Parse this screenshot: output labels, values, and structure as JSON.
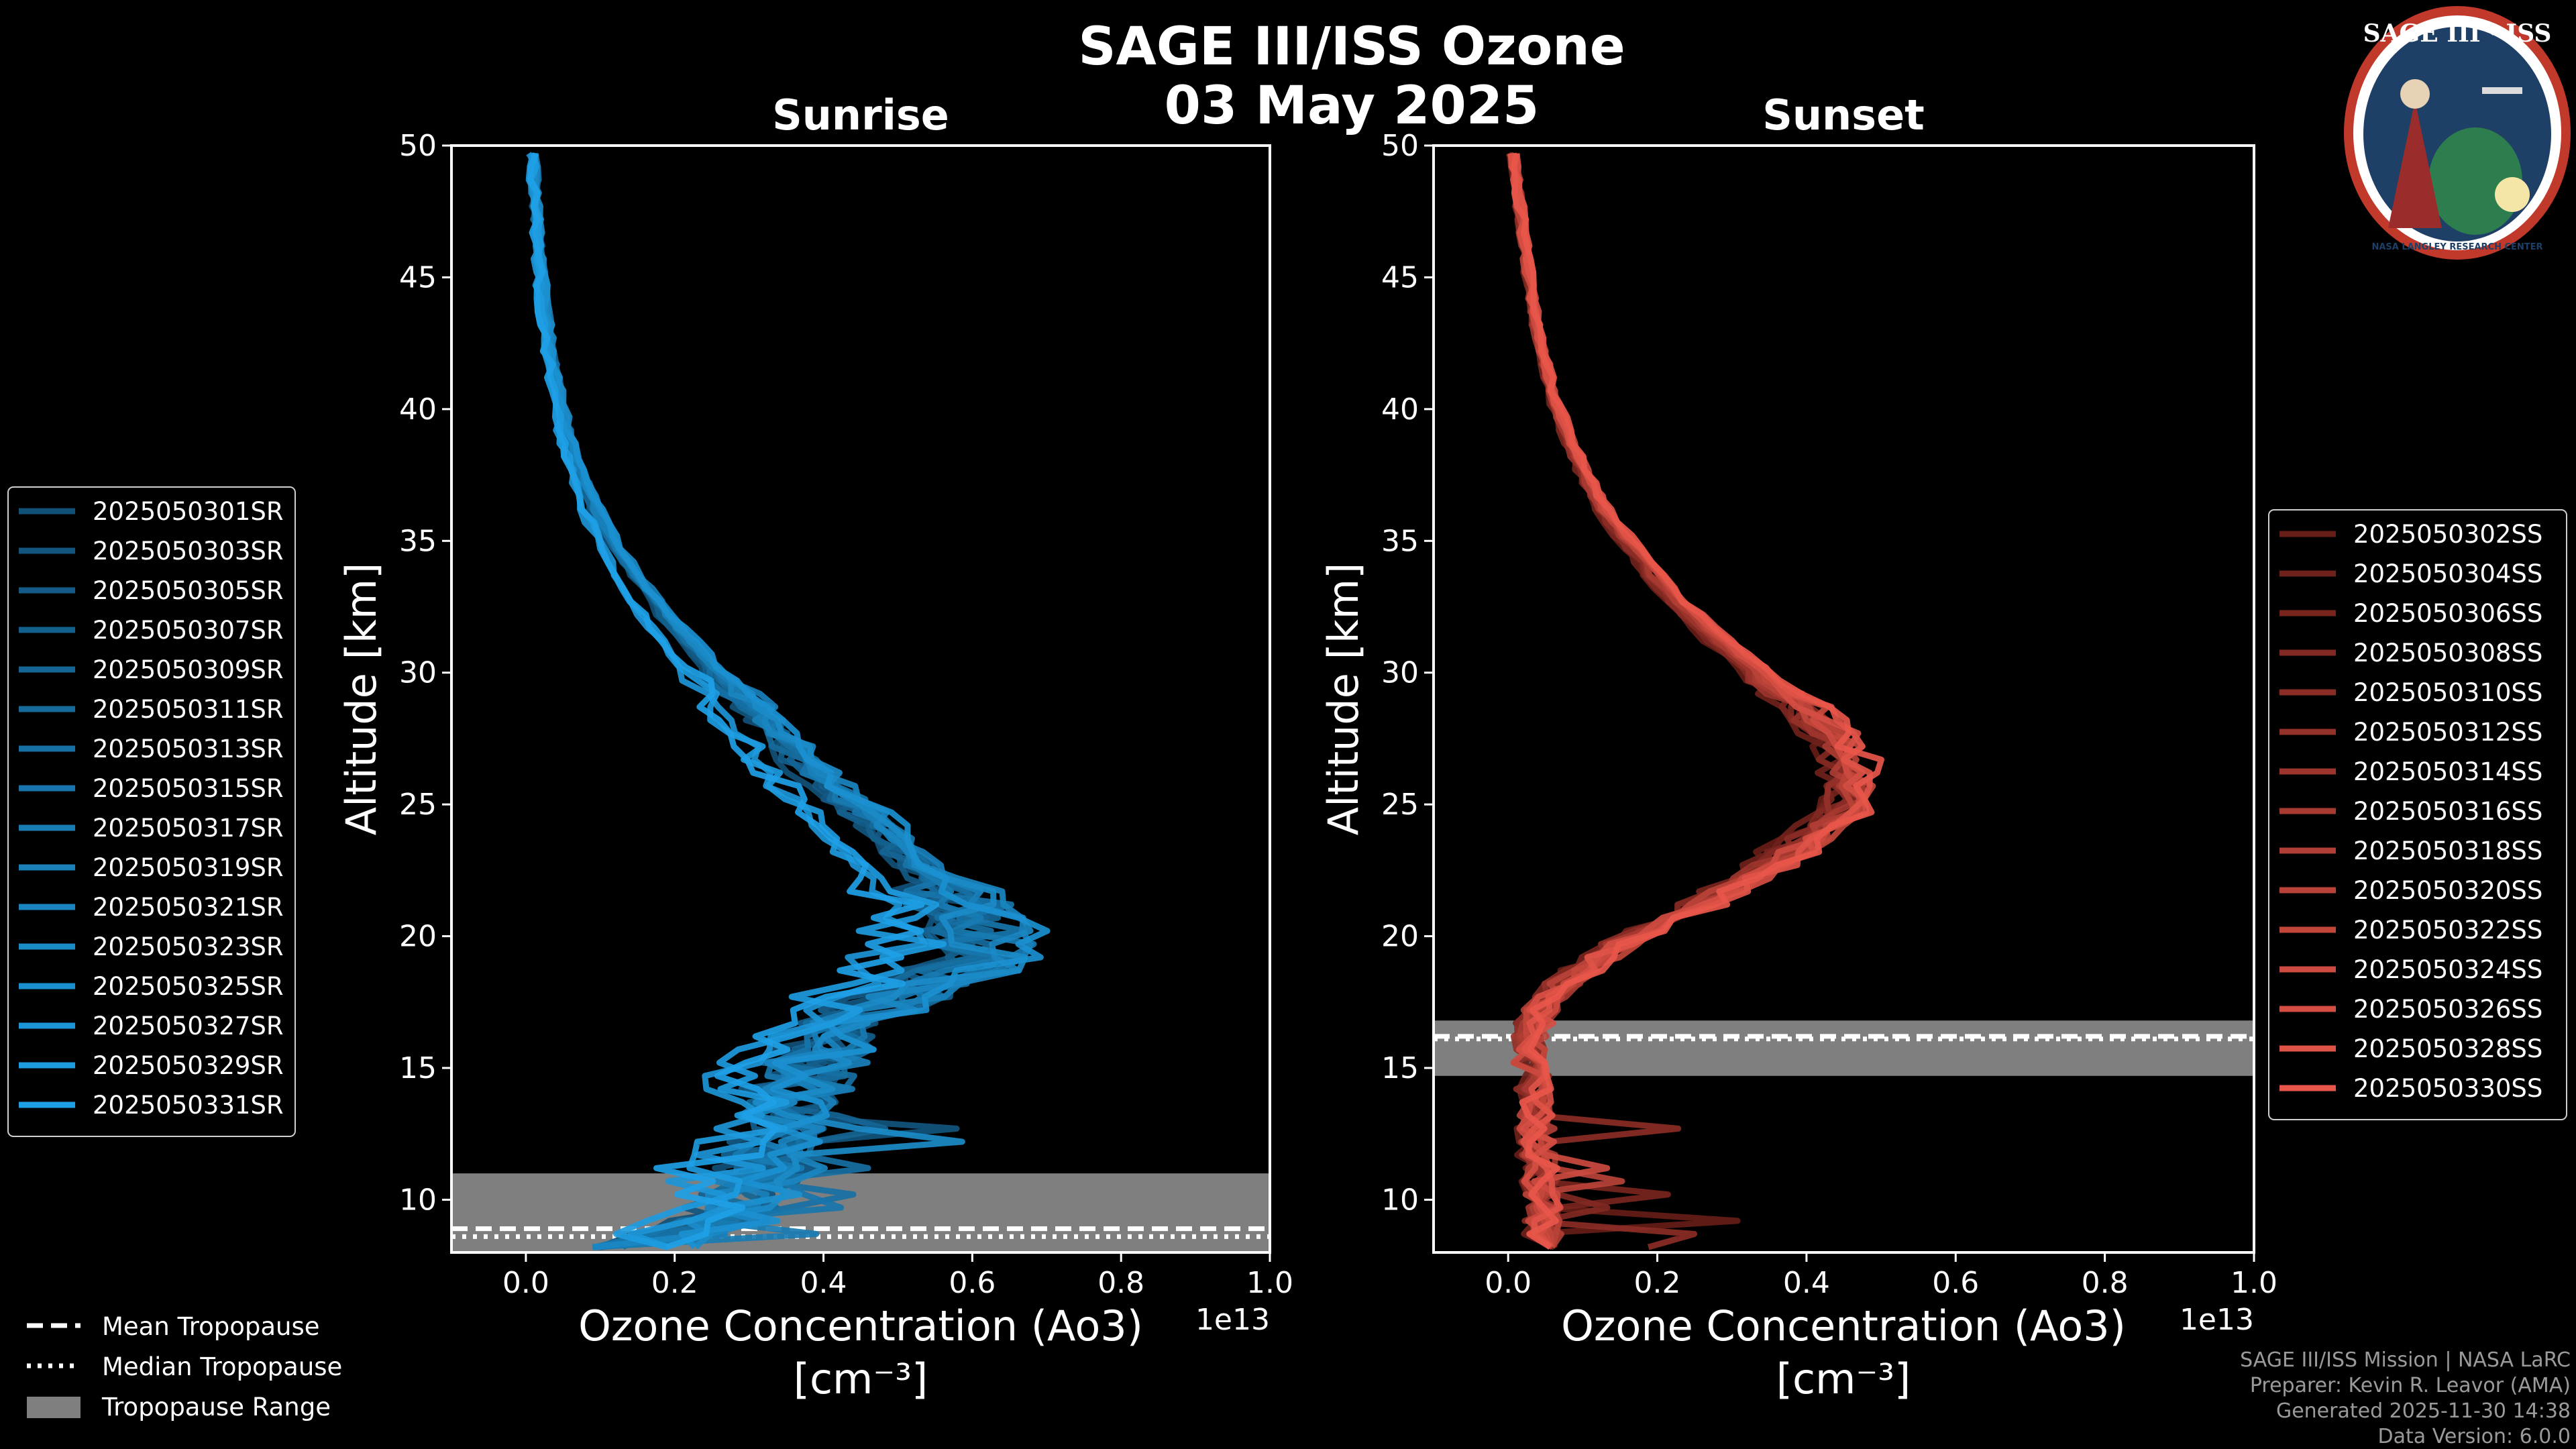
{
  "title": {
    "line1": "SAGE III/ISS Ozone",
    "line2": "03 May 2025"
  },
  "credits": [
    "SAGE III/ISS Mission | NASA LaRC",
    "Preparer: Kevin R. Leavor (AMA)",
    "Generated 2025-11-30 14:38",
    "Data Version: 6.0.0"
  ],
  "logo": {
    "text": "SAGE III · ISS",
    "ring_text": "NASA LANGLEY RESEARCH CENTER",
    "border_color": "#c0392b",
    "bg_color": "#1e3f66"
  },
  "tropo_legend": [
    {
      "label": "Mean Tropopause",
      "style": "dashed"
    },
    {
      "label": "Median Tropopause",
      "style": "dotted"
    },
    {
      "label": "Tropopause Range",
      "style": "band"
    }
  ],
  "chart_data": [
    {
      "type": "line",
      "title": "Sunrise",
      "xlabel": "Ozone Concentration (Ao3)",
      "xunits": "[cm⁻³]",
      "ylabel": "Altitude [km]",
      "xlim": [
        -0.1,
        1.0
      ],
      "ylim": [
        8,
        50
      ],
      "x_scale": "1e13",
      "xticks": [
        "0.0",
        "0.2",
        "0.4",
        "0.6",
        "0.8",
        "1.0"
      ],
      "yticks": [
        "10",
        "15",
        "20",
        "25",
        "30",
        "35",
        "40",
        "45",
        "50"
      ],
      "color_dark": "#0d3552",
      "color_light": "#1ea0e6",
      "tropopause": {
        "mean": 8.9,
        "median": 8.6,
        "range": [
          8.0,
          11.0
        ]
      },
      "profile": {
        "alt": [
          8,
          9,
          10,
          11,
          12,
          13,
          14,
          15,
          16,
          17,
          18,
          19,
          20,
          21,
          22,
          23,
          24,
          25,
          26,
          27,
          28,
          30,
          32,
          34,
          36,
          38,
          40,
          42,
          44,
          46,
          48,
          50
        ],
        "conc": [
          0.12,
          0.24,
          0.28,
          0.3,
          0.32,
          0.33,
          0.34,
          0.35,
          0.38,
          0.42,
          0.5,
          0.56,
          0.57,
          0.55,
          0.52,
          0.48,
          0.45,
          0.41,
          0.37,
          0.34,
          0.31,
          0.24,
          0.18,
          0.13,
          0.09,
          0.063,
          0.045,
          0.032,
          0.023,
          0.017,
          0.012,
          0.008
        ]
      },
      "series": [
        "2025050301SR",
        "2025050303SR",
        "2025050305SR",
        "2025050307SR",
        "2025050309SR",
        "2025050311SR",
        "2025050313SR",
        "2025050315SR",
        "2025050317SR",
        "2025050319SR",
        "2025050321SR",
        "2025050323SR",
        "2025050325SR",
        "2025050327SR",
        "2025050329SR",
        "2025050331SR"
      ]
    },
    {
      "type": "line",
      "title": "Sunset",
      "xlabel": "Ozone Concentration (Ao3)",
      "xunits": "[cm⁻³]",
      "ylabel": "Altitude [km]",
      "xlim": [
        -0.1,
        1.0
      ],
      "ylim": [
        8,
        50
      ],
      "x_scale": "1e13",
      "xticks": [
        "0.0",
        "0.2",
        "0.4",
        "0.6",
        "0.8",
        "1.0"
      ],
      "yticks": [
        "10",
        "15",
        "20",
        "25",
        "30",
        "35",
        "40",
        "45",
        "50"
      ],
      "color_dark": "#3a0a06",
      "color_light": "#e8564a",
      "tropopause": {
        "mean": 16.2,
        "median": 16.1,
        "range": [
          14.7,
          16.8
        ]
      },
      "profile": {
        "alt": [
          8,
          10,
          12,
          14,
          15,
          16,
          17,
          18,
          19,
          20,
          21,
          22,
          23,
          24,
          25,
          26,
          27,
          28,
          29,
          30,
          31,
          32,
          33,
          34,
          35,
          36,
          38,
          40,
          42,
          44,
          46,
          48,
          50
        ],
        "conc": [
          0.05,
          0.05,
          0.04,
          0.04,
          0.03,
          0.03,
          0.04,
          0.07,
          0.12,
          0.18,
          0.26,
          0.33,
          0.39,
          0.45,
          0.49,
          0.49,
          0.48,
          0.45,
          0.41,
          0.36,
          0.31,
          0.27,
          0.23,
          0.2,
          0.17,
          0.14,
          0.1,
          0.07,
          0.05,
          0.035,
          0.025,
          0.015,
          0.005
        ]
      },
      "series": [
        "2025050302SS",
        "2025050304SS",
        "2025050306SS",
        "2025050308SS",
        "2025050310SS",
        "2025050312SS",
        "2025050314SS",
        "2025050316SS",
        "2025050318SS",
        "2025050320SS",
        "2025050322SS",
        "2025050324SS",
        "2025050326SS",
        "2025050328SS",
        "2025050330SS"
      ]
    }
  ]
}
